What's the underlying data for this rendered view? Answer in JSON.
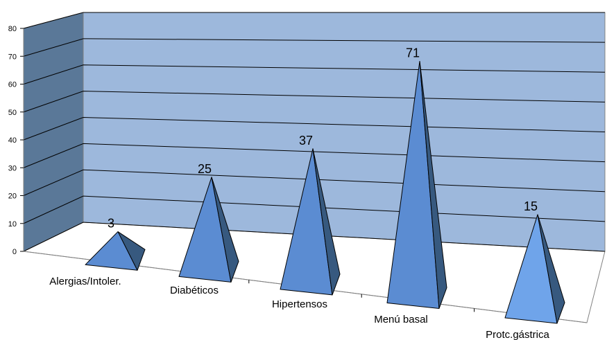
{
  "chart_data": {
    "type": "bar",
    "style": "3d-pyramid",
    "title": "",
    "xlabel": "",
    "ylabel": "",
    "categories": [
      "Alergias/Intoler.",
      "Diabéticos",
      "Hipertensos",
      "Menú basal",
      "Protc.gástrica"
    ],
    "values": [
      3,
      25,
      37,
      71,
      15
    ],
    "data_labels": [
      "3",
      "25",
      "37",
      "71",
      "15"
    ],
    "ylim": [
      0,
      80
    ],
    "yticks": [
      "0",
      "10",
      "20",
      "30",
      "40",
      "50",
      "60",
      "70",
      "80"
    ],
    "grid": true,
    "legend": "none",
    "colors": {
      "back_wall": "#9db8dc",
      "side_wall": "#5a7898",
      "gridline": "#000000",
      "pyramid_front": "#5b8cd2",
      "pyramid_side": "#37597f",
      "pyramid_last_front": "#6fa4ea"
    }
  }
}
